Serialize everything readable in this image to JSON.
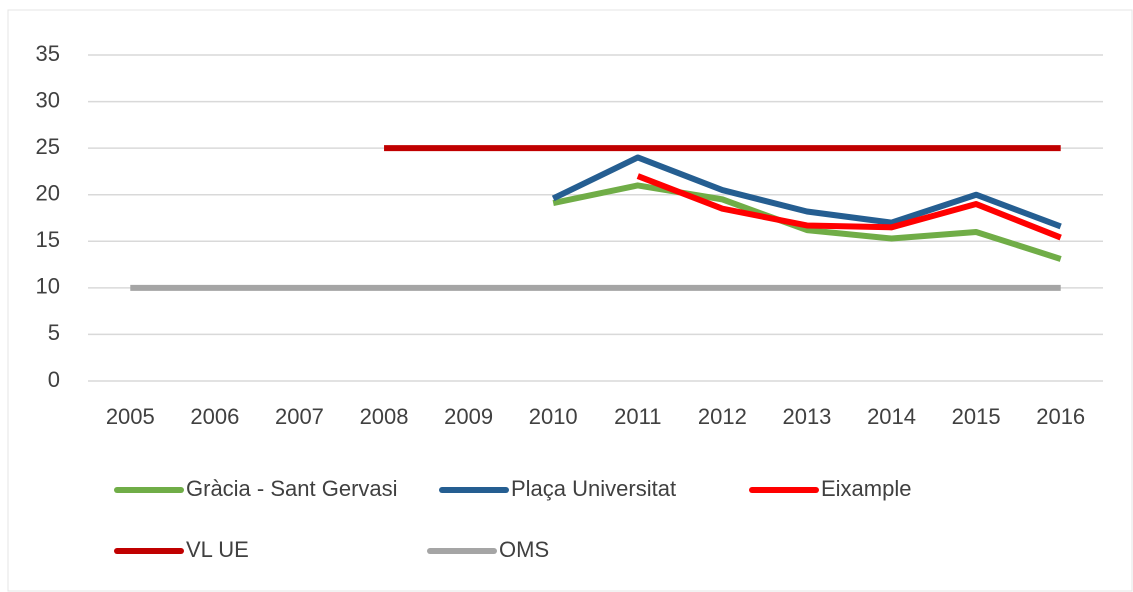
{
  "chart_data": {
    "type": "line",
    "categories": [
      "2005",
      "2006",
      "2007",
      "2008",
      "2009",
      "2010",
      "2011",
      "2012",
      "2013",
      "2014",
      "2015",
      "2016"
    ],
    "series": [
      {
        "name": "Gràcia - Sant Gervasi",
        "color": "#70ad47",
        "values": [
          null,
          null,
          null,
          null,
          null,
          19.1,
          21,
          19.5,
          16.2,
          15.3,
          16,
          13.1
        ]
      },
      {
        "name": "Plaça Universitat",
        "color": "#255e91",
        "values": [
          null,
          null,
          null,
          null,
          null,
          19.6,
          24,
          20.5,
          18.2,
          17,
          20,
          16.6
        ]
      },
      {
        "name": "Eixample",
        "color": "#ff0000",
        "values": [
          null,
          null,
          null,
          null,
          null,
          null,
          22,
          18.5,
          16.7,
          16.5,
          19,
          15.4
        ]
      },
      {
        "name": "VL UE",
        "color": "#c00000",
        "values": [
          null,
          null,
          null,
          25,
          25,
          25,
          25,
          25,
          25,
          25,
          25,
          25
        ]
      },
      {
        "name": "OMS",
        "color": "#a5a5a5",
        "values": [
          10,
          10,
          10,
          10,
          10,
          10,
          10,
          10,
          10,
          10,
          10,
          10
        ]
      }
    ],
    "ylim": [
      0,
      35
    ],
    "yticks": [
      0,
      5,
      10,
      15,
      20,
      25,
      30,
      35
    ],
    "grid": true
  }
}
